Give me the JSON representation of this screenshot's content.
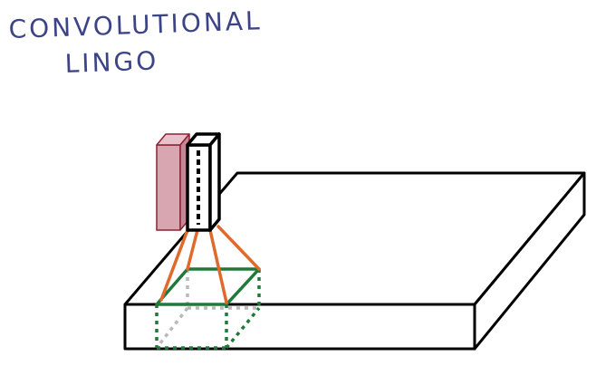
{
  "title": {
    "line1": "CONVOLUTIONAL",
    "line2": "LINGO"
  },
  "colors": {
    "ink": "#000000",
    "title": "#3c4487",
    "filter_fill": "#d8a6b1",
    "filter_stroke": "#8a2433",
    "connector": "#e06a2c",
    "window": "#1f7a3a",
    "hidden": "#b9b9b9"
  }
}
